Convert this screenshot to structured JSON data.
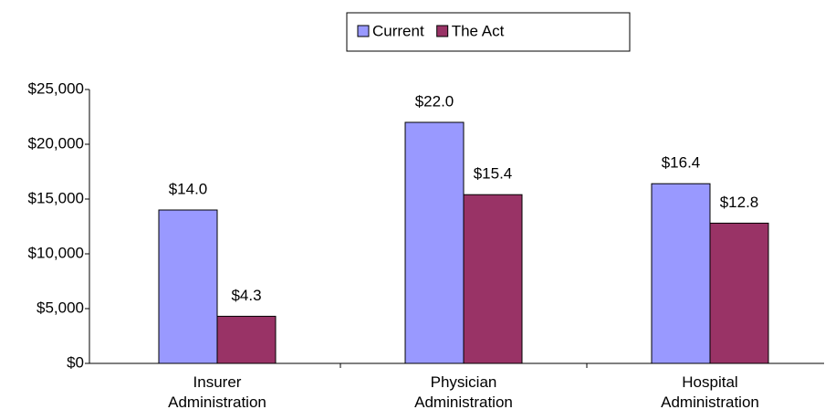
{
  "chart_data": {
    "type": "bar",
    "categories": [
      "Insurer Administration",
      "Physician Administration",
      "Hospital Administration"
    ],
    "series": [
      {
        "name": "Current",
        "color": "#9999ff",
        "values": [
          14000,
          22000,
          16400
        ],
        "value_labels": [
          "$14.0",
          "$22.0",
          "$16.4"
        ]
      },
      {
        "name": "The Act",
        "color": "#993366",
        "values": [
          4300,
          15400,
          12800
        ],
        "value_labels": [
          "$4.3",
          "$15.4",
          "$12.8"
        ]
      }
    ],
    "ylim": [
      0,
      25000
    ],
    "yticks": [
      {
        "value": 0,
        "label": "$0"
      },
      {
        "value": 5000,
        "label": "$5,000"
      },
      {
        "value": 10000,
        "label": "$10,000"
      },
      {
        "value": 15000,
        "label": "$15,000"
      },
      {
        "value": 20000,
        "label": "$20,000"
      },
      {
        "value": 25000,
        "label": "$25,000"
      }
    ],
    "legend": "top"
  }
}
